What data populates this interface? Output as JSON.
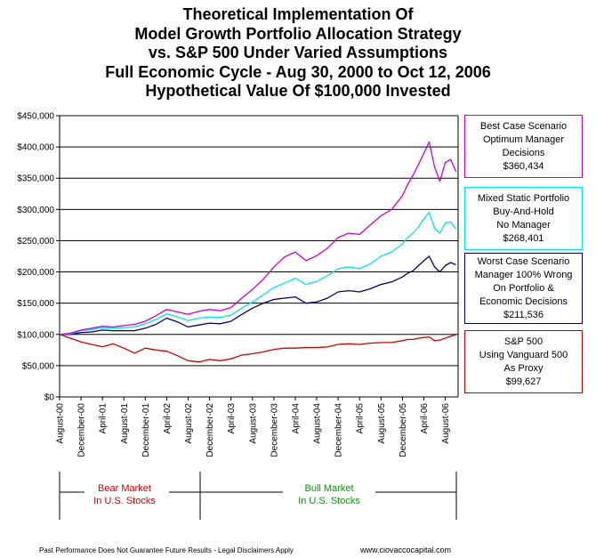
{
  "title_lines": [
    "Theoretical Implementation Of",
    "Model Growth Portfolio Allocation Strategy",
    "vs. S&P 500 Under Varied Assumptions",
    "Full Economic Cycle - Aug 30, 2000 to Oct 12, 2006",
    "Hypothetical Value Of $100,000 Invested"
  ],
  "legend": [
    {
      "lines": [
        "Best Case Scenario",
        "Optimum Manager",
        "Decisions",
        "$360,434"
      ],
      "color": "#cc00cc"
    },
    {
      "lines": [
        "Mixed Static Portfolio",
        "Buy-And-Hold",
        "No Manager",
        "$268,401"
      ],
      "color": "#00e5e5"
    },
    {
      "lines": [
        "Worst Case Scenario",
        "Manager 100% Wrong",
        "On Portfolio &",
        "Economic Decisions",
        "$211,536"
      ],
      "color": "#000066"
    },
    {
      "lines": [
        "S&P 500",
        "Using Vanguard 500",
        "As Proxy",
        "$99,627"
      ],
      "color": "#cc0000"
    }
  ],
  "markets": {
    "bear": {
      "lines": [
        "Bear Market",
        "In U.S. Stocks"
      ],
      "color": "#cc0000"
    },
    "bull": {
      "lines": [
        "Bull Market",
        "In U.S. Stocks"
      ],
      "color": "#009900"
    }
  },
  "footer": {
    "disclaimer": "Past Performance Does Not Guarantee Future Results - Legal Disclaimers Apply",
    "url": "www.ciovaccocapital.com"
  },
  "chart_data": {
    "type": "line",
    "title": "Theoretical Implementation Of Model Growth Portfolio Allocation Strategy vs. S&P 500 Under Varied Assumptions Full Economic Cycle - Aug 30, 2000 to Oct 12, 2006 Hypothetical Value Of $100,000 Invested",
    "xlabel": "",
    "ylabel": "",
    "ylim": [
      0,
      450000
    ],
    "yticks": [
      0,
      50000,
      100000,
      150000,
      200000,
      250000,
      300000,
      350000,
      400000,
      450000
    ],
    "ytick_labels": [
      "$0",
      "$50,000",
      "$100,000",
      "$150,000",
      "$200,000",
      "$250,000",
      "$300,000",
      "$350,000",
      "$400,000",
      "$450,000"
    ],
    "xlim": [
      "2000-08",
      "2006-10"
    ],
    "xticks": [
      "2000-08",
      "2000-12",
      "2001-04",
      "2001-08",
      "2001-12",
      "2002-04",
      "2002-08",
      "2002-12",
      "2003-04",
      "2003-08",
      "2003-12",
      "2004-04",
      "2004-08",
      "2004-12",
      "2005-04",
      "2005-08",
      "2005-12",
      "2006-04",
      "2006-08"
    ],
    "xtick_labels": [
      "August-00",
      "December-00",
      "April-01",
      "August-01",
      "December-01",
      "April-02",
      "August-02",
      "December-02",
      "April-03",
      "August-03",
      "December-03",
      "April-04",
      "August-04",
      "December-04",
      "April-05",
      "August-05",
      "December-05",
      "April-06",
      "August-06"
    ],
    "grid": "horizontal",
    "legend_position": "right",
    "series": [
      {
        "name": "Best Case Scenario",
        "color": "#cc00cc",
        "x": [
          "2000-08",
          "2000-10",
          "2000-12",
          "2001-02",
          "2001-04",
          "2001-06",
          "2001-08",
          "2001-10",
          "2001-12",
          "2002-02",
          "2002-04",
          "2002-06",
          "2002-08",
          "2002-10",
          "2002-12",
          "2003-02",
          "2003-04",
          "2003-06",
          "2003-08",
          "2003-10",
          "2003-12",
          "2004-02",
          "2004-04",
          "2004-06",
          "2004-08",
          "2004-10",
          "2004-12",
          "2005-02",
          "2005-04",
          "2005-06",
          "2005-08",
          "2005-10",
          "2005-12",
          "2006-01",
          "2006-02",
          "2006-03",
          "2006-04",
          "2006-05",
          "2006-06",
          "2006-07",
          "2006-08",
          "2006-09",
          "2006-10"
        ],
        "values": [
          100000,
          102000,
          107000,
          110000,
          113000,
          112000,
          114000,
          116000,
          121000,
          130000,
          140000,
          136000,
          132000,
          137000,
          140000,
          138000,
          143000,
          158000,
          172000,
          188000,
          208000,
          224000,
          232000,
          218000,
          226000,
          238000,
          255000,
          262000,
          260000,
          275000,
          290000,
          300000,
          322000,
          340000,
          355000,
          372000,
          390000,
          408000,
          368000,
          345000,
          375000,
          380000,
          360434
        ]
      },
      {
        "name": "Mixed Static Portfolio",
        "color": "#00e5e5",
        "x": [
          "2000-08",
          "2000-10",
          "2000-12",
          "2001-02",
          "2001-04",
          "2001-06",
          "2001-08",
          "2001-10",
          "2001-12",
          "2002-02",
          "2002-04",
          "2002-06",
          "2002-08",
          "2002-10",
          "2002-12",
          "2003-02",
          "2003-04",
          "2003-06",
          "2003-08",
          "2003-10",
          "2003-12",
          "2004-02",
          "2004-04",
          "2004-06",
          "2004-08",
          "2004-10",
          "2004-12",
          "2005-02",
          "2005-04",
          "2005-06",
          "2005-08",
          "2005-10",
          "2005-12",
          "2006-01",
          "2006-02",
          "2006-03",
          "2006-04",
          "2006-05",
          "2006-06",
          "2006-07",
          "2006-08",
          "2006-09",
          "2006-10"
        ],
        "values": [
          100000,
          101000,
          106000,
          108000,
          111000,
          110000,
          111000,
          112000,
          117000,
          124000,
          133000,
          128000,
          122000,
          126000,
          128000,
          127000,
          131000,
          142000,
          152000,
          163000,
          175000,
          182000,
          190000,
          180000,
          185000,
          194000,
          205000,
          208000,
          205000,
          213000,
          225000,
          232000,
          245000,
          255000,
          262000,
          272000,
          285000,
          295000,
          270000,
          262000,
          278000,
          280000,
          268401
        ]
      },
      {
        "name": "Worst Case Scenario",
        "color": "#000066",
        "x": [
          "2000-08",
          "2000-10",
          "2000-12",
          "2001-02",
          "2001-04",
          "2001-06",
          "2001-08",
          "2001-10",
          "2001-12",
          "2002-02",
          "2002-04",
          "2002-06",
          "2002-08",
          "2002-10",
          "2002-12",
          "2003-02",
          "2003-04",
          "2003-06",
          "2003-08",
          "2003-10",
          "2003-12",
          "2004-02",
          "2004-04",
          "2004-06",
          "2004-08",
          "2004-10",
          "2004-12",
          "2005-02",
          "2005-04",
          "2005-06",
          "2005-08",
          "2005-10",
          "2005-12",
          "2006-01",
          "2006-02",
          "2006-03",
          "2006-04",
          "2006-05",
          "2006-06",
          "2006-07",
          "2006-08",
          "2006-09",
          "2006-10"
        ],
        "values": [
          100000,
          100000,
          103000,
          104000,
          107000,
          106000,
          106000,
          106000,
          110000,
          116000,
          126000,
          120000,
          112000,
          115000,
          118000,
          117000,
          121000,
          132000,
          142000,
          150000,
          156000,
          158000,
          160000,
          150000,
          152000,
          158000,
          168000,
          170000,
          168000,
          173000,
          180000,
          184000,
          192000,
          198000,
          202000,
          210000,
          218000,
          225000,
          208000,
          200000,
          210000,
          215000,
          211536
        ]
      },
      {
        "name": "S&P 500",
        "color": "#cc0000",
        "x": [
          "2000-08",
          "2000-10",
          "2000-12",
          "2001-02",
          "2001-04",
          "2001-06",
          "2001-08",
          "2001-10",
          "2001-12",
          "2002-02",
          "2002-04",
          "2002-06",
          "2002-08",
          "2002-10",
          "2002-12",
          "2003-02",
          "2003-04",
          "2003-06",
          "2003-08",
          "2003-10",
          "2003-12",
          "2004-02",
          "2004-04",
          "2004-06",
          "2004-08",
          "2004-10",
          "2004-12",
          "2005-02",
          "2005-04",
          "2005-06",
          "2005-08",
          "2005-10",
          "2005-12",
          "2006-01",
          "2006-02",
          "2006-03",
          "2006-04",
          "2006-05",
          "2006-06",
          "2006-07",
          "2006-08",
          "2006-09",
          "2006-10"
        ],
        "values": [
          100000,
          94000,
          88000,
          84000,
          80000,
          85000,
          78000,
          70000,
          78000,
          75000,
          73000,
          66000,
          58000,
          56000,
          60000,
          58000,
          61000,
          67000,
          69000,
          72000,
          76000,
          78000,
          78000,
          79000,
          79000,
          80000,
          84000,
          85000,
          84000,
          86000,
          87000,
          87000,
          90000,
          92000,
          92000,
          94000,
          95000,
          96000,
          90000,
          91000,
          94000,
          97000,
          99627
        ]
      }
    ]
  }
}
